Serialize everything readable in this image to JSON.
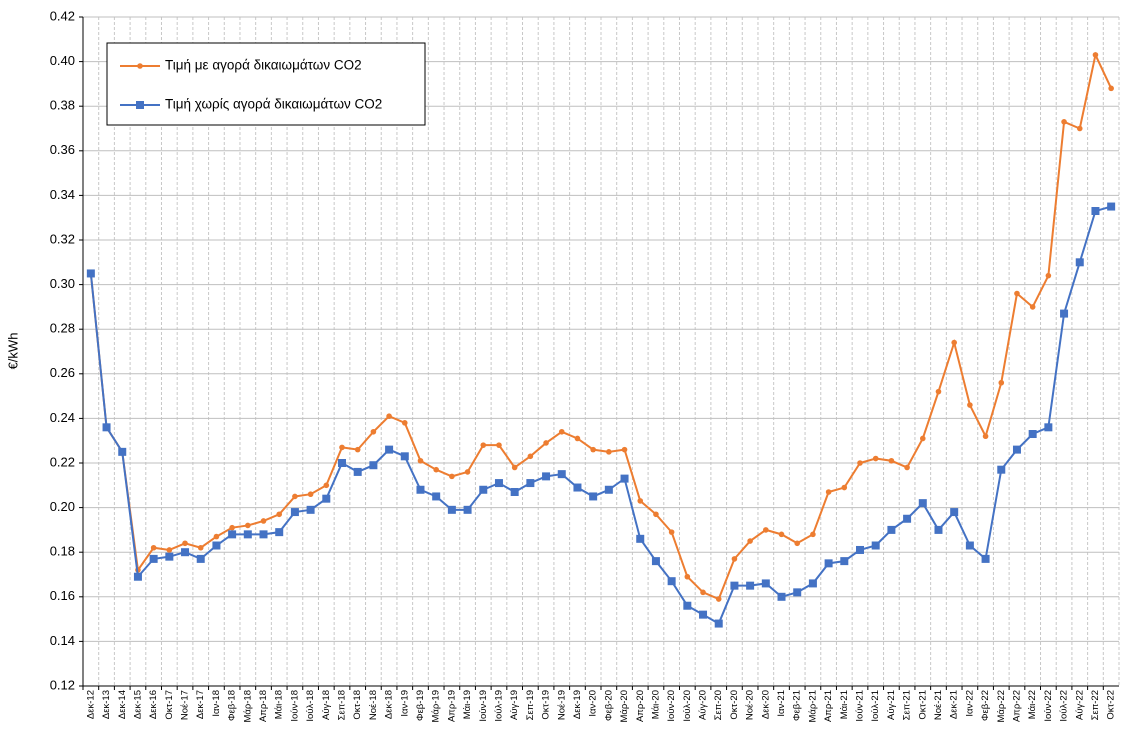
{
  "chart_data": {
    "type": "line",
    "y_label": "€/kWh",
    "categories": [
      "Δεκ-12",
      "Δεκ-13",
      "Δεκ-14",
      "Δεκ-15",
      "Δεκ-16",
      "Οκτ-17",
      "Νοέ-17",
      "Δεκ-17",
      "Ιαν-18",
      "Φεβ-18",
      "Μάρ-18",
      "Απρ-18",
      "Μάι-18",
      "Ιούν-18",
      "Ιούλ-18",
      "Αύγ-18",
      "Σεπ-18",
      "Οκτ-18",
      "Νοέ-18",
      "Δεκ-18",
      "Ιαν-19",
      "Φεβ-19",
      "Μάρ-19",
      "Απρ-19",
      "Μάι-19",
      "Ιούν-19",
      "Ιούλ-19",
      "Αύγ-19",
      "Σεπ-19",
      "Οκτ-19",
      "Νοέ-19",
      "Δεκ-19",
      "Ιαν-20",
      "Φεβ-20",
      "Μάρ-20",
      "Απρ-20",
      "Μάι-20",
      "Ιούν-20",
      "Ιούλ-20",
      "Αύγ-20",
      "Σεπ-20",
      "Οκτ-20",
      "Νοέ-20",
      "Δεκ-20",
      "Ιαν-21",
      "Φεβ-21",
      "Μάρ-21",
      "Απρ-21",
      "Μάι-21",
      "Ιούν-21",
      "Ιούλ-21",
      "Αύγ-21",
      "Σεπ-21",
      "Οκτ-21",
      "Νοέ-21",
      "Δεκ-21",
      "Ιαν-22",
      "Φεβ-22",
      "Μάρ-22",
      "Απρ-22",
      "Μάι-22",
      "Ιούν-22",
      "Ιούλ-22",
      "Αύγ-22",
      "Σεπ-22",
      "Οκτ-22"
    ],
    "series": [
      {
        "name": "Τιμή με αγορά δικαιωμάτων CO2",
        "color": "#ed7d31",
        "marker": "circle",
        "values": [
          0.305,
          0.236,
          0.225,
          0.172,
          0.182,
          0.181,
          0.184,
          0.182,
          0.187,
          0.191,
          0.192,
          0.194,
          0.197,
          0.205,
          0.206,
          0.21,
          0.227,
          0.226,
          0.234,
          0.241,
          0.238,
          0.221,
          0.217,
          0.214,
          0.216,
          0.228,
          0.228,
          0.218,
          0.223,
          0.229,
          0.234,
          0.231,
          0.226,
          0.225,
          0.226,
          0.203,
          0.197,
          0.189,
          0.169,
          0.162,
          0.159,
          0.177,
          0.185,
          0.19,
          0.188,
          0.184,
          0.188,
          0.207,
          0.209,
          0.22,
          0.222,
          0.221,
          0.218,
          0.231,
          0.252,
          0.274,
          0.246,
          0.232,
          0.256,
          0.296,
          0.29,
          0.304,
          0.373,
          0.37,
          0.403,
          0.388
        ]
      },
      {
        "name": "Τιμή χωρίς αγορά δικαιωμάτων CO2",
        "color": "#4472c4",
        "marker": "square",
        "values": [
          0.305,
          0.236,
          0.225,
          0.169,
          0.177,
          0.178,
          0.18,
          0.177,
          0.183,
          0.188,
          0.188,
          0.188,
          0.189,
          0.198,
          0.199,
          0.204,
          0.22,
          0.216,
          0.219,
          0.226,
          0.223,
          0.208,
          0.205,
          0.199,
          0.199,
          0.208,
          0.211,
          0.207,
          0.211,
          0.214,
          0.215,
          0.209,
          0.205,
          0.208,
          0.213,
          0.186,
          0.176,
          0.167,
          0.156,
          0.152,
          0.148,
          0.165,
          0.165,
          0.166,
          0.16,
          0.162,
          0.166,
          0.175,
          0.176,
          0.181,
          0.183,
          0.19,
          0.195,
          0.202,
          0.19,
          0.198,
          0.183,
          0.177,
          0.217,
          0.226,
          0.233,
          0.236,
          0.287,
          0.31,
          0.333,
          0.335
        ]
      }
    ],
    "ylim": [
      0.12,
      0.42
    ],
    "yticks": [
      0.12,
      0.14,
      0.16,
      0.18,
      {
        "value": 0.2,
        "label": "0.20"
      },
      0.22,
      0.24,
      0.26,
      0.28,
      {
        "value": 0.3,
        "label": "0.30"
      },
      0.32,
      0.34,
      0.36,
      0.38,
      {
        "value": 0.4,
        "label": "0.40"
      },
      0.42
    ],
    "grid": true,
    "legend": "upper left"
  }
}
